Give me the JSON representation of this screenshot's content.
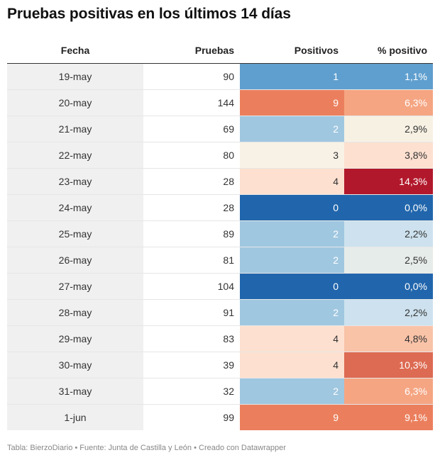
{
  "title": "Pruebas positivas en los últimos 14 días",
  "footer": "Tabla: BierzoDiario • Fuente: Junta de Castilla y León • Creado con Datawrapper",
  "chart_data": {
    "type": "table",
    "columns": [
      "Fecha",
      "Pruebas",
      "Positivos",
      "% positivo"
    ],
    "rows": [
      {
        "fecha": "19-may",
        "pruebas": "90",
        "positivos": "1",
        "pct": "1,1%",
        "pos_color": "#5f9fcf",
        "pct_color": "#5f9fcf"
      },
      {
        "fecha": "20-may",
        "pruebas": "144",
        "positivos": "9",
        "pct": "6,3%",
        "pos_color": "#eb7f5d",
        "pct_color": "#f5a582"
      },
      {
        "fecha": "21-may",
        "pruebas": "69",
        "positivos": "2",
        "pct": "2,9%",
        "pos_color": "#a0c7e0",
        "pct_color": "#f7f1e4"
      },
      {
        "fecha": "22-may",
        "pruebas": "80",
        "positivos": "3",
        "pct": "3,8%",
        "pos_color": "#f8f2e6",
        "pct_color": "#fde0d0"
      },
      {
        "fecha": "23-may",
        "pruebas": "28",
        "positivos": "4",
        "pct": "14,3%",
        "pos_color": "#fde0d0",
        "pct_color": "#b2182b"
      },
      {
        "fecha": "24-may",
        "pruebas": "28",
        "positivos": "0",
        "pct": "0,0%",
        "pos_color": "#2166ac",
        "pct_color": "#2166ac"
      },
      {
        "fecha": "25-may",
        "pruebas": "89",
        "positivos": "2",
        "pct": "2,2%",
        "pos_color": "#a0c7e0",
        "pct_color": "#cde2ee"
      },
      {
        "fecha": "26-may",
        "pruebas": "81",
        "positivos": "2",
        "pct": "2,5%",
        "pos_color": "#a0c7e0",
        "pct_color": "#e6ece9"
      },
      {
        "fecha": "27-may",
        "pruebas": "104",
        "positivos": "0",
        "pct": "0,0%",
        "pos_color": "#2166ac",
        "pct_color": "#2166ac"
      },
      {
        "fecha": "28-may",
        "pruebas": "91",
        "positivos": "2",
        "pct": "2,2%",
        "pos_color": "#a0c7e0",
        "pct_color": "#cde2ee"
      },
      {
        "fecha": "29-may",
        "pruebas": "83",
        "positivos": "4",
        "pct": "4,8%",
        "pos_color": "#fde0d0",
        "pct_color": "#f9c3a8"
      },
      {
        "fecha": "30-may",
        "pruebas": "39",
        "positivos": "4",
        "pct": "10,3%",
        "pos_color": "#fde0d0",
        "pct_color": "#dd6a52"
      },
      {
        "fecha": "31-may",
        "pruebas": "32",
        "positivos": "2",
        "pct": "6,3%",
        "pos_color": "#a0c7e0",
        "pct_color": "#f5a582"
      },
      {
        "fecha": "1-jun",
        "pruebas": "99",
        "positivos": "9",
        "pct": "9,1%",
        "pos_color": "#eb7f5d",
        "pct_color": "#eb7f5d"
      }
    ]
  }
}
